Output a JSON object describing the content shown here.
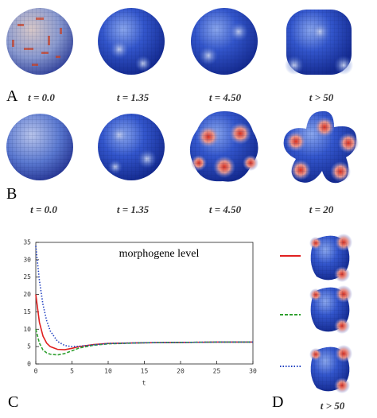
{
  "figure": {
    "panel_labels": [
      "A",
      "B",
      "C",
      "D"
    ],
    "row_a_times": [
      "t = 0.0",
      "t = 1.35",
      "t = 4.50",
      "t > 50"
    ],
    "row_b_times": [
      "t = 0.0",
      "t = 1.35",
      "t = 4.50",
      "t = 20"
    ],
    "d_time": "t > 50"
  },
  "chart_data": {
    "type": "line",
    "annotation": "morphogene level",
    "x_label": "t",
    "x": [
      0,
      0.5,
      1,
      1.5,
      2,
      3,
      4,
      5,
      6,
      8,
      10,
      15,
      20,
      25,
      30
    ],
    "series": [
      {
        "color": "#e02020",
        "style": "solid",
        "values": [
          20,
          12,
          8,
          6,
          5,
          4.2,
          4.1,
          4.5,
          5,
          5.6,
          5.9,
          6.1,
          6.2,
          6.3,
          6.3
        ]
      },
      {
        "color": "#30a030",
        "style": "dashed",
        "values": [
          10,
          6,
          4,
          3.2,
          2.8,
          2.6,
          3,
          3.8,
          4.6,
          5.4,
          5.8,
          6.1,
          6.2,
          6.3,
          6.3
        ]
      },
      {
        "color": "#2040c0",
        "style": "dotted",
        "values": [
          34,
          24,
          17,
          12.5,
          9.5,
          6.5,
          5.3,
          5,
          5.1,
          5.5,
          5.9,
          6.1,
          6.2,
          6.3,
          6.3
        ]
      }
    ],
    "xlim": [
      0,
      30
    ],
    "xticks": [
      0,
      5,
      10,
      15,
      20,
      25,
      30
    ],
    "ylim": [
      0,
      35
    ],
    "yticks": [
      0,
      5,
      10,
      15,
      20,
      25,
      30,
      35
    ]
  }
}
